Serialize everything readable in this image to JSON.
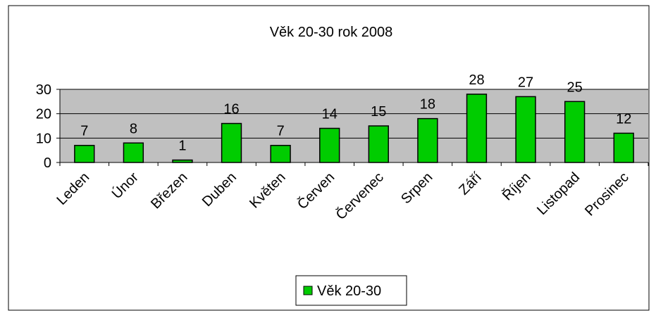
{
  "chart_data": {
    "type": "bar",
    "title": "Věk 20-30 rok 2008",
    "categories": [
      "Leden",
      "Únor",
      "Březen",
      "Duben",
      "Květen",
      "Červen",
      "Červenec",
      "Srpen",
      "Září",
      "Říjen",
      "Listopad",
      "Prosinec"
    ],
    "series": [
      {
        "name": "Věk 20-30",
        "color": "#00cc00",
        "values": [
          7,
          8,
          1,
          16,
          7,
          14,
          15,
          18,
          28,
          27,
          25,
          12
        ]
      }
    ],
    "ylim": [
      0,
      30
    ],
    "yticks": [
      0,
      10,
      20,
      30
    ],
    "grid": true,
    "legend": "bottom"
  }
}
